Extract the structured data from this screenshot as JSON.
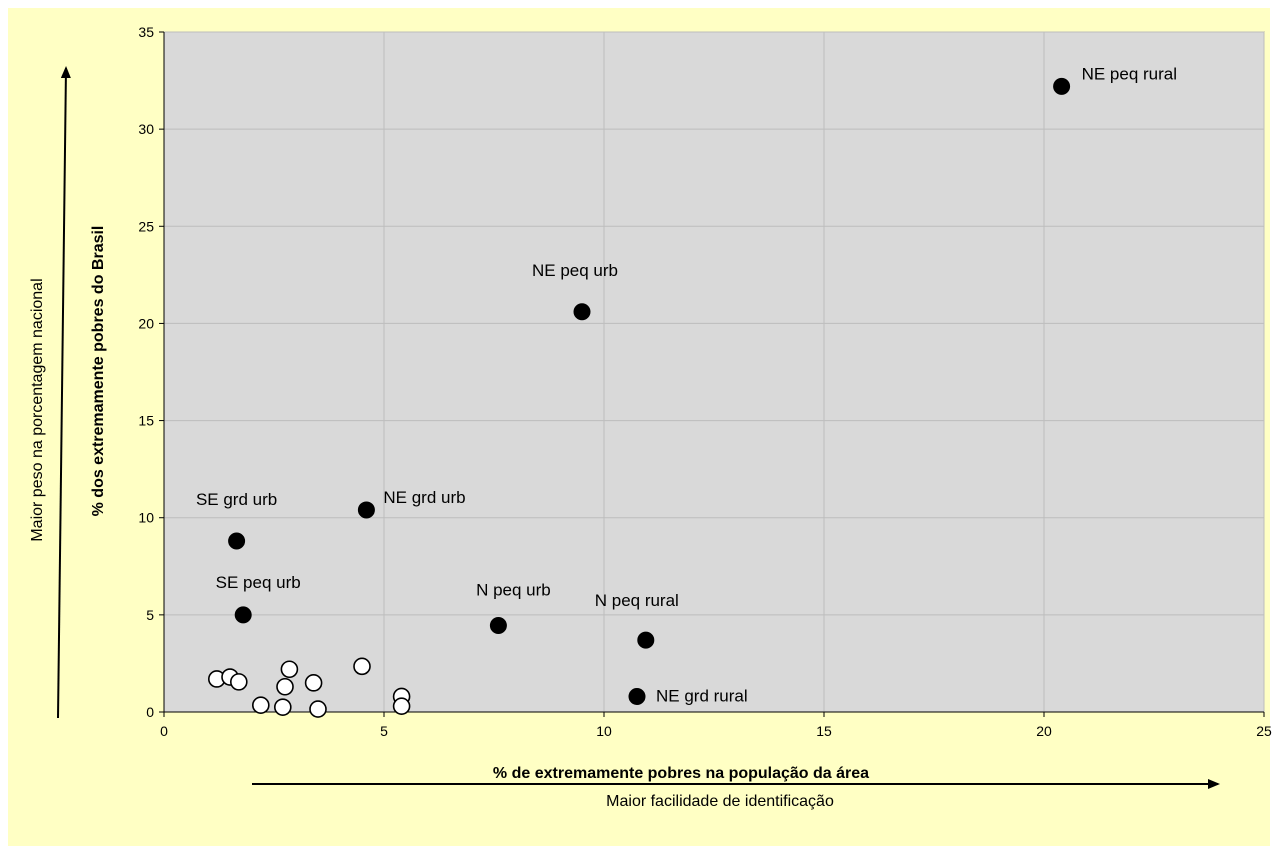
{
  "chart_data": {
    "type": "scatter",
    "title": "",
    "xlabel": "% de extremamente pobres na população da área",
    "ylabel": "% dos extremamente pobres do Brasil",
    "xlim": [
      0,
      25
    ],
    "ylim": [
      0,
      35
    ],
    "xticks": [
      0,
      5,
      10,
      15,
      20,
      25
    ],
    "yticks": [
      0,
      5,
      10,
      15,
      20,
      25,
      30,
      35
    ],
    "grid": true,
    "plot_background": "#d9d9d9",
    "chart_background": "#ffffc4",
    "arrow_labels": {
      "vertical": "Maior peso na porcentagem nacional",
      "horizontal": "Maior facilidade de identificação"
    },
    "series": [
      {
        "marker": "filled",
        "color": "#000000",
        "points": [
          {
            "x": 20.4,
            "y": 32.2,
            "label": "NE peq rural"
          },
          {
            "x": 9.5,
            "y": 20.6,
            "label": "NE peq urb"
          },
          {
            "x": 4.6,
            "y": 10.4,
            "label": "NE grd urb"
          },
          {
            "x": 1.65,
            "y": 8.8,
            "label": "SE grd urb"
          },
          {
            "x": 1.8,
            "y": 5.0,
            "label": "SE peq urb"
          },
          {
            "x": 7.6,
            "y": 4.45,
            "label": "N peq urb"
          },
          {
            "x": 10.95,
            "y": 3.7,
            "label": "N peq rural"
          },
          {
            "x": 10.75,
            "y": 0.8,
            "label": "NE grd rural"
          }
        ]
      },
      {
        "marker": "open",
        "color": "#ffffff",
        "points": [
          {
            "x": 1.2,
            "y": 1.7
          },
          {
            "x": 1.5,
            "y": 1.8
          },
          {
            "x": 1.7,
            "y": 1.55
          },
          {
            "x": 2.2,
            "y": 0.35
          },
          {
            "x": 2.7,
            "y": 0.25
          },
          {
            "x": 2.75,
            "y": 1.3
          },
          {
            "x": 2.85,
            "y": 2.2
          },
          {
            "x": 3.4,
            "y": 1.5
          },
          {
            "x": 3.5,
            "y": 0.15
          },
          {
            "x": 4.5,
            "y": 2.35
          },
          {
            "x": 5.4,
            "y": 0.8
          },
          {
            "x": 5.4,
            "y": 0.3
          }
        ]
      }
    ]
  }
}
